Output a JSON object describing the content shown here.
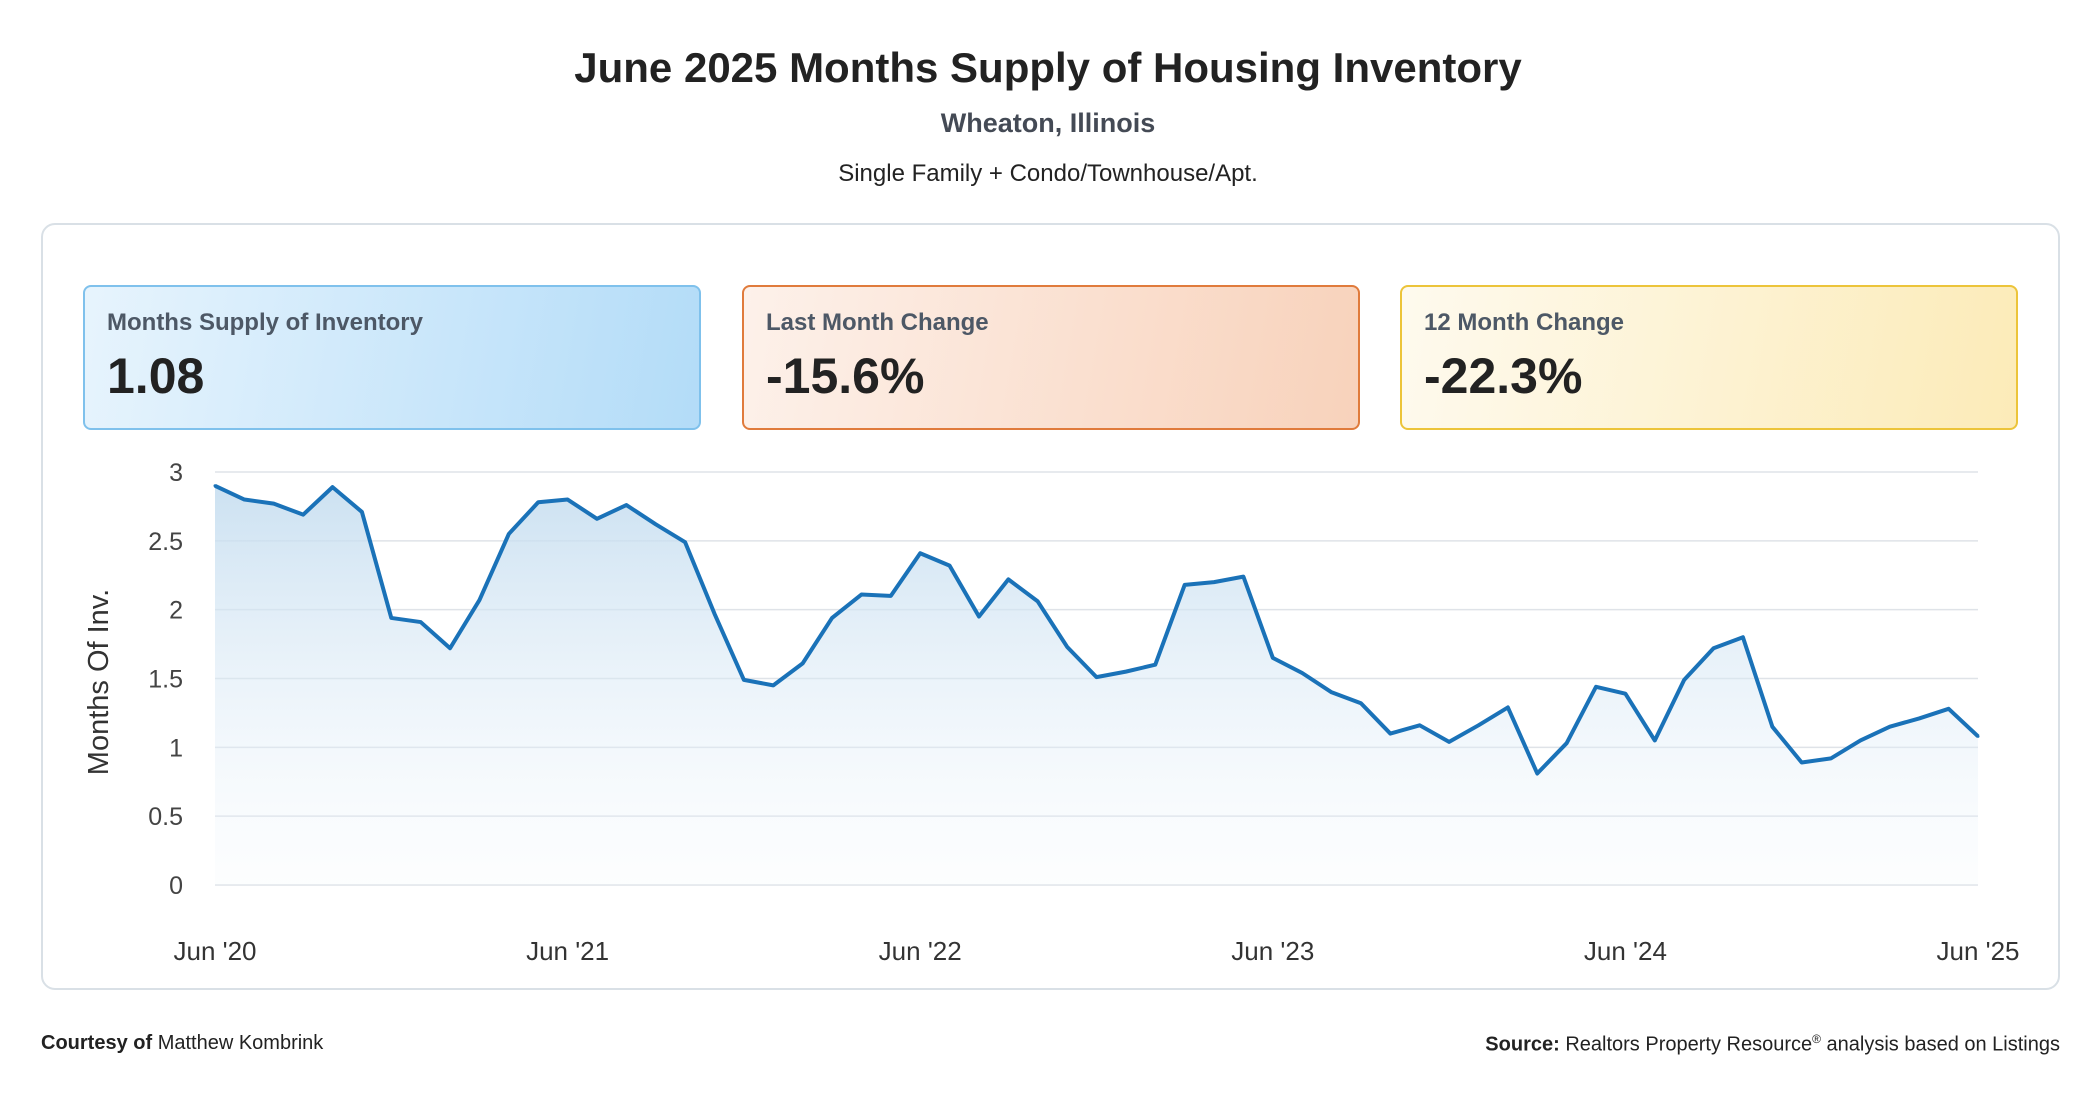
{
  "header": {
    "title": "June 2025 Months Supply of Housing Inventory",
    "location": "Wheaton, Illinois",
    "property_types": "Single Family + Condo/Townhouse/Apt."
  },
  "cards": [
    {
      "label": "Months Supply of Inventory",
      "value": "1.08",
      "theme": "blue"
    },
    {
      "label": "Last Month Change",
      "value": "-15.6%",
      "theme": "orange"
    },
    {
      "label": "12 Month Change",
      "value": "-22.3%",
      "theme": "yellow"
    }
  ],
  "chart_data": {
    "type": "area",
    "title": "",
    "ylabel": "Months Of Inv.",
    "xlabel": "",
    "ylim": [
      0,
      3
    ],
    "yticks": [
      0,
      0.5,
      1,
      1.5,
      2,
      2.5,
      3
    ],
    "ytick_labels": [
      "0",
      "0.5",
      "1",
      "1.5",
      "2",
      "2.5",
      "3"
    ],
    "xtick_labels": [
      "Jun '20",
      "Jun '21",
      "Jun '22",
      "Jun '23",
      "Jun '24",
      "Jun '25"
    ],
    "xtick_month_index": [
      0,
      12,
      24,
      36,
      48,
      60
    ],
    "start_month": "Jun 2020",
    "end_month": "Jun 2025",
    "grid": true,
    "series": [
      {
        "name": "Months Supply of Inventory",
        "color": "#1a72b8",
        "values": [
          2.9,
          2.8,
          2.77,
          2.69,
          2.89,
          2.71,
          1.94,
          1.91,
          1.72,
          2.07,
          2.55,
          2.78,
          2.8,
          2.66,
          2.76,
          2.62,
          2.49,
          1.97,
          1.49,
          1.45,
          1.61,
          1.94,
          2.11,
          2.1,
          2.41,
          2.32,
          1.95,
          2.22,
          2.06,
          1.73,
          1.51,
          1.55,
          1.6,
          2.18,
          2.2,
          2.24,
          1.65,
          1.54,
          1.4,
          1.32,
          1.1,
          1.16,
          1.04,
          1.16,
          1.29,
          0.81,
          1.03,
          1.44,
          1.39,
          1.05,
          1.49,
          1.72,
          1.8,
          1.15,
          0.89,
          0.92,
          1.05,
          1.15,
          1.21,
          1.28,
          1.08
        ]
      }
    ]
  },
  "footer": {
    "courtesy_label": "Courtesy of",
    "courtesy_name": "Matthew Kombrink",
    "source_label": "Source:",
    "source_text": "Realtors Property Resource",
    "source_mark": "®",
    "source_suffix": "analysis based on Listings"
  }
}
